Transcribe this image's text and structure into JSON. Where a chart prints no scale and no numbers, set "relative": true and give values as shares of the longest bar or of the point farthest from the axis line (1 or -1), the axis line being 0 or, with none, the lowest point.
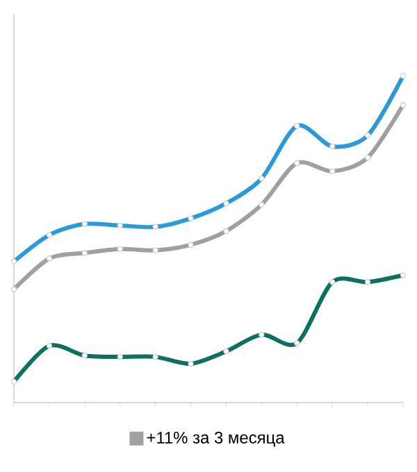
{
  "chart_data": {
    "type": "line",
    "relative": true,
    "categories": [
      null,
      null,
      null,
      null,
      null,
      null,
      null,
      null,
      null,
      null,
      null,
      null
    ],
    "series": [
      {
        "color": "#2b9ad8",
        "values": [
          0.432,
          0.513,
          0.547,
          0.542,
          0.538,
          0.564,
          0.61,
          0.686,
          0.847,
          0.784,
          0.818,
          1
        ]
      },
      {
        "name": "+11% за 3 месяца",
        "color": "#a0a0a0",
        "values": [
          0.347,
          0.441,
          0.458,
          0.47,
          0.466,
          0.483,
          0.525,
          0.606,
          0.733,
          0.708,
          0.75,
          0.911
        ]
      },
      {
        "color": "#0e7060",
        "values": [
          0.064,
          0.174,
          0.144,
          0.14,
          0.14,
          0.119,
          0.157,
          0.208,
          0.182,
          0.369,
          0.369,
          0.39
        ]
      }
    ],
    "marker": "circle",
    "legend": "bottom"
  }
}
